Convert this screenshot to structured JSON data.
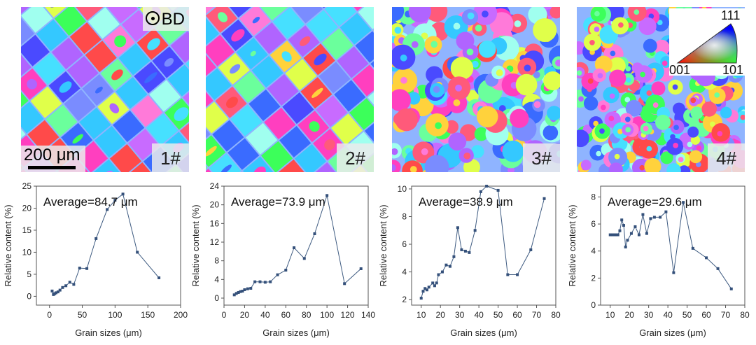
{
  "maps": [
    {
      "label": "1#",
      "seed": 11,
      "style": "big"
    },
    {
      "label": "2#",
      "seed": 23,
      "style": "big"
    },
    {
      "label": "3#",
      "seed": 37,
      "style": "fine"
    },
    {
      "label": "4#",
      "seed": 53,
      "style": "finer"
    }
  ],
  "scalebar": {
    "text": "200 μm"
  },
  "bd": {
    "text": "BD"
  },
  "ipf_legend": {
    "corner_top": "111",
    "corner_left": "001",
    "corner_right": "101"
  },
  "colors": {
    "line": "#3d5a80",
    "marker": "#34507a",
    "axis": "#555555"
  },
  "chart_data": [
    {
      "type": "line",
      "annotation": "Average=84.7 μm",
      "xlabel": "Grain sizes (μm)",
      "ylabel": "Relative content (%)",
      "xlim": [
        -20,
        200
      ],
      "ylim": [
        -2,
        25
      ],
      "xticks": [
        0,
        50,
        100,
        150,
        200
      ],
      "yticks": [
        0,
        5,
        10,
        15,
        20,
        25
      ],
      "x": [
        4,
        6,
        8,
        10,
        13,
        16,
        20,
        25,
        31,
        37,
        46,
        57,
        71,
        88,
        100,
        112,
        134,
        167
      ],
      "y": [
        1.2,
        0.4,
        0.6,
        0.8,
        1.0,
        1.4,
        2.0,
        2.4,
        3.2,
        2.7,
        6.4,
        6.3,
        13.1,
        19.7,
        21.8,
        23.2,
        10.0,
        4.2
      ]
    },
    {
      "type": "line",
      "annotation": "Average=73.9 μm",
      "xlabel": "Grain sizes (μm)",
      "ylabel": "Relative content (%)",
      "xlim": [
        0,
        140
      ],
      "ylim": [
        -1.5,
        24
      ],
      "xticks": [
        0,
        20,
        40,
        60,
        80,
        100,
        120,
        140
      ],
      "yticks": [
        0,
        4,
        8,
        12,
        16,
        20,
        24
      ],
      "x": [
        10,
        12,
        14,
        16,
        18,
        20,
        23,
        26,
        30,
        35,
        40,
        45,
        52,
        60,
        68,
        78,
        88,
        100,
        117,
        133
      ],
      "y": [
        0.7,
        1.0,
        1.2,
        1.4,
        1.5,
        1.8,
        2.0,
        2.1,
        3.5,
        3.5,
        3.4,
        3.5,
        5.0,
        6.0,
        10.8,
        8.5,
        13.8,
        22.0,
        3.1,
        6.3
      ]
    },
    {
      "type": "line",
      "annotation": "Average=38.9 μm",
      "xlabel": "Grain sizes (μm)",
      "ylabel": "Relative content (%)",
      "xlim": [
        5,
        80
      ],
      "ylim": [
        1.6,
        10.2
      ],
      "xticks": [
        10,
        20,
        30,
        40,
        50,
        60,
        70,
        80
      ],
      "yticks": [
        2,
        4,
        6,
        8,
        10
      ],
      "x": [
        10,
        11,
        12,
        13,
        14,
        16,
        17,
        18,
        19,
        21,
        23,
        25,
        27,
        29,
        31,
        33,
        35,
        38,
        41,
        44,
        50,
        55,
        60,
        67,
        74
      ],
      "y": [
        2.1,
        2.6,
        2.8,
        2.7,
        2.9,
        3.2,
        3.0,
        3.2,
        3.8,
        4.0,
        4.5,
        4.4,
        5.1,
        7.2,
        5.6,
        5.5,
        5.4,
        7.0,
        9.8,
        10.2,
        9.9,
        3.8,
        3.8,
        5.6,
        9.3
      ]
    },
    {
      "type": "line",
      "annotation": "Average=29.6 μm",
      "xlabel": "Grain sizes (μm)",
      "ylabel": "Relative content (%)",
      "xlim": [
        5,
        80
      ],
      "ylim": [
        0,
        8.8
      ],
      "xticks": [
        10,
        20,
        30,
        40,
        50,
        60,
        70,
        80
      ],
      "yticks": [
        0,
        2,
        4,
        6,
        8
      ],
      "x": [
        10,
        11,
        12,
        13,
        14,
        15,
        16,
        17,
        18,
        19,
        21,
        23,
        25,
        27,
        29,
        31,
        33,
        36,
        39,
        43,
        48,
        53,
        60,
        66,
        73
      ],
      "y": [
        5.2,
        5.2,
        5.2,
        5.2,
        5.2,
        5.5,
        6.3,
        5.9,
        4.3,
        4.8,
        5.3,
        5.8,
        5.2,
        6.7,
        5.3,
        6.4,
        6.5,
        6.5,
        6.9,
        2.4,
        7.6,
        4.2,
        3.5,
        2.7,
        1.2
      ]
    }
  ]
}
